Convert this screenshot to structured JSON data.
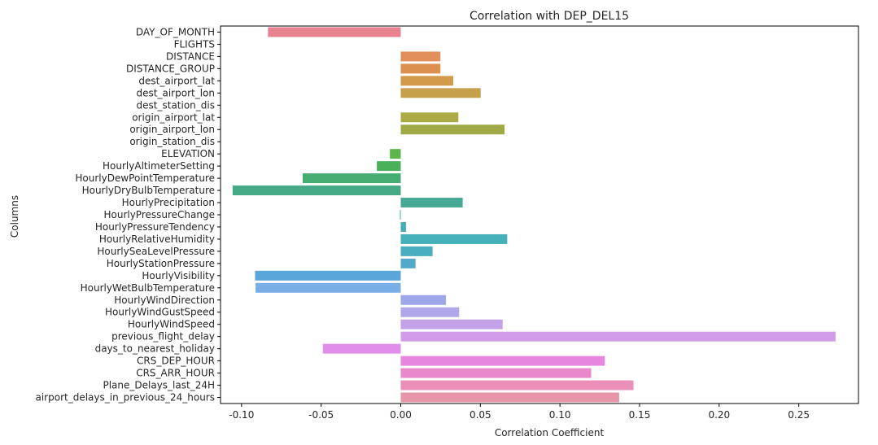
{
  "chart_data": {
    "type": "bar",
    "orientation": "horizontal",
    "title": "Correlation with DEP_DEL15",
    "xlabel": "Correlation Coefficient",
    "ylabel": "Columns",
    "xlim": [
      -0.1132,
      0.2875
    ],
    "xticks": [
      "-0.10",
      "-0.05",
      "0.00",
      "0.05",
      "0.10",
      "0.15",
      "0.20",
      "0.25"
    ],
    "grid": false,
    "categories": [
      "DAY_OF_MONTH",
      "FLIGHTS",
      "DISTANCE",
      "DISTANCE_GROUP",
      "dest_airport_lat",
      "dest_airport_lon",
      "dest_station_dis",
      "origin_airport_lat",
      "origin_airport_lon",
      "origin_station_dis",
      "ELEVATION",
      "HourlyAltimeterSetting",
      "HourlyDewPointTemperature",
      "HourlyDryBulbTemperature",
      "HourlyPrecipitation",
      "HourlyPressureChange",
      "HourlyPressureTendency",
      "HourlyRelativeHumidity",
      "HourlySeaLevelPressure",
      "HourlyStationPressure",
      "HourlyVisibility",
      "HourlyWetBulbTemperature",
      "HourlyWindDirection",
      "HourlyWindGustSpeed",
      "HourlyWindSpeed",
      "previous_flight_delay",
      "days_to_nearest_holiday",
      "CRS_DEP_HOUR",
      "CRS_ARR_HOUR",
      "Plane_Delays_last_24H",
      "airport_delays_in_previous_24_hours"
    ],
    "values": [
      -0.0834,
      0.0,
      0.0249,
      0.0249,
      0.033,
      0.0502,
      0.0,
      0.0362,
      0.0652,
      0.0,
      -0.0068,
      -0.015,
      -0.0616,
      -0.1056,
      0.0389,
      -0.0005,
      0.0033,
      0.0669,
      0.02,
      0.0093,
      -0.0915,
      -0.0912,
      0.0284,
      0.0367,
      0.064,
      0.2731,
      -0.0489,
      0.1282,
      0.1196,
      0.1462,
      0.1372
    ],
    "colors": [
      "#e8838f",
      "#e7876f",
      "#e28f5c",
      "#dc904f",
      "#d39a49",
      "#c7a04b",
      "#bba54b",
      "#adaa48",
      "#9fa946",
      "#90aa44",
      "#5db64c",
      "#4ab15a",
      "#47ac72",
      "#45a986",
      "#46a996",
      "#47aaa4",
      "#45aeb0",
      "#46b0b8",
      "#4aaec1",
      "#53a9cc",
      "#5aa6da",
      "#7aaee6",
      "#9ea8e8",
      "#b0a6ea",
      "#c3a2ea",
      "#d29cea",
      "#e08eea",
      "#e786de",
      "#e989cc",
      "#e98fb8",
      "#e795a8"
    ]
  }
}
